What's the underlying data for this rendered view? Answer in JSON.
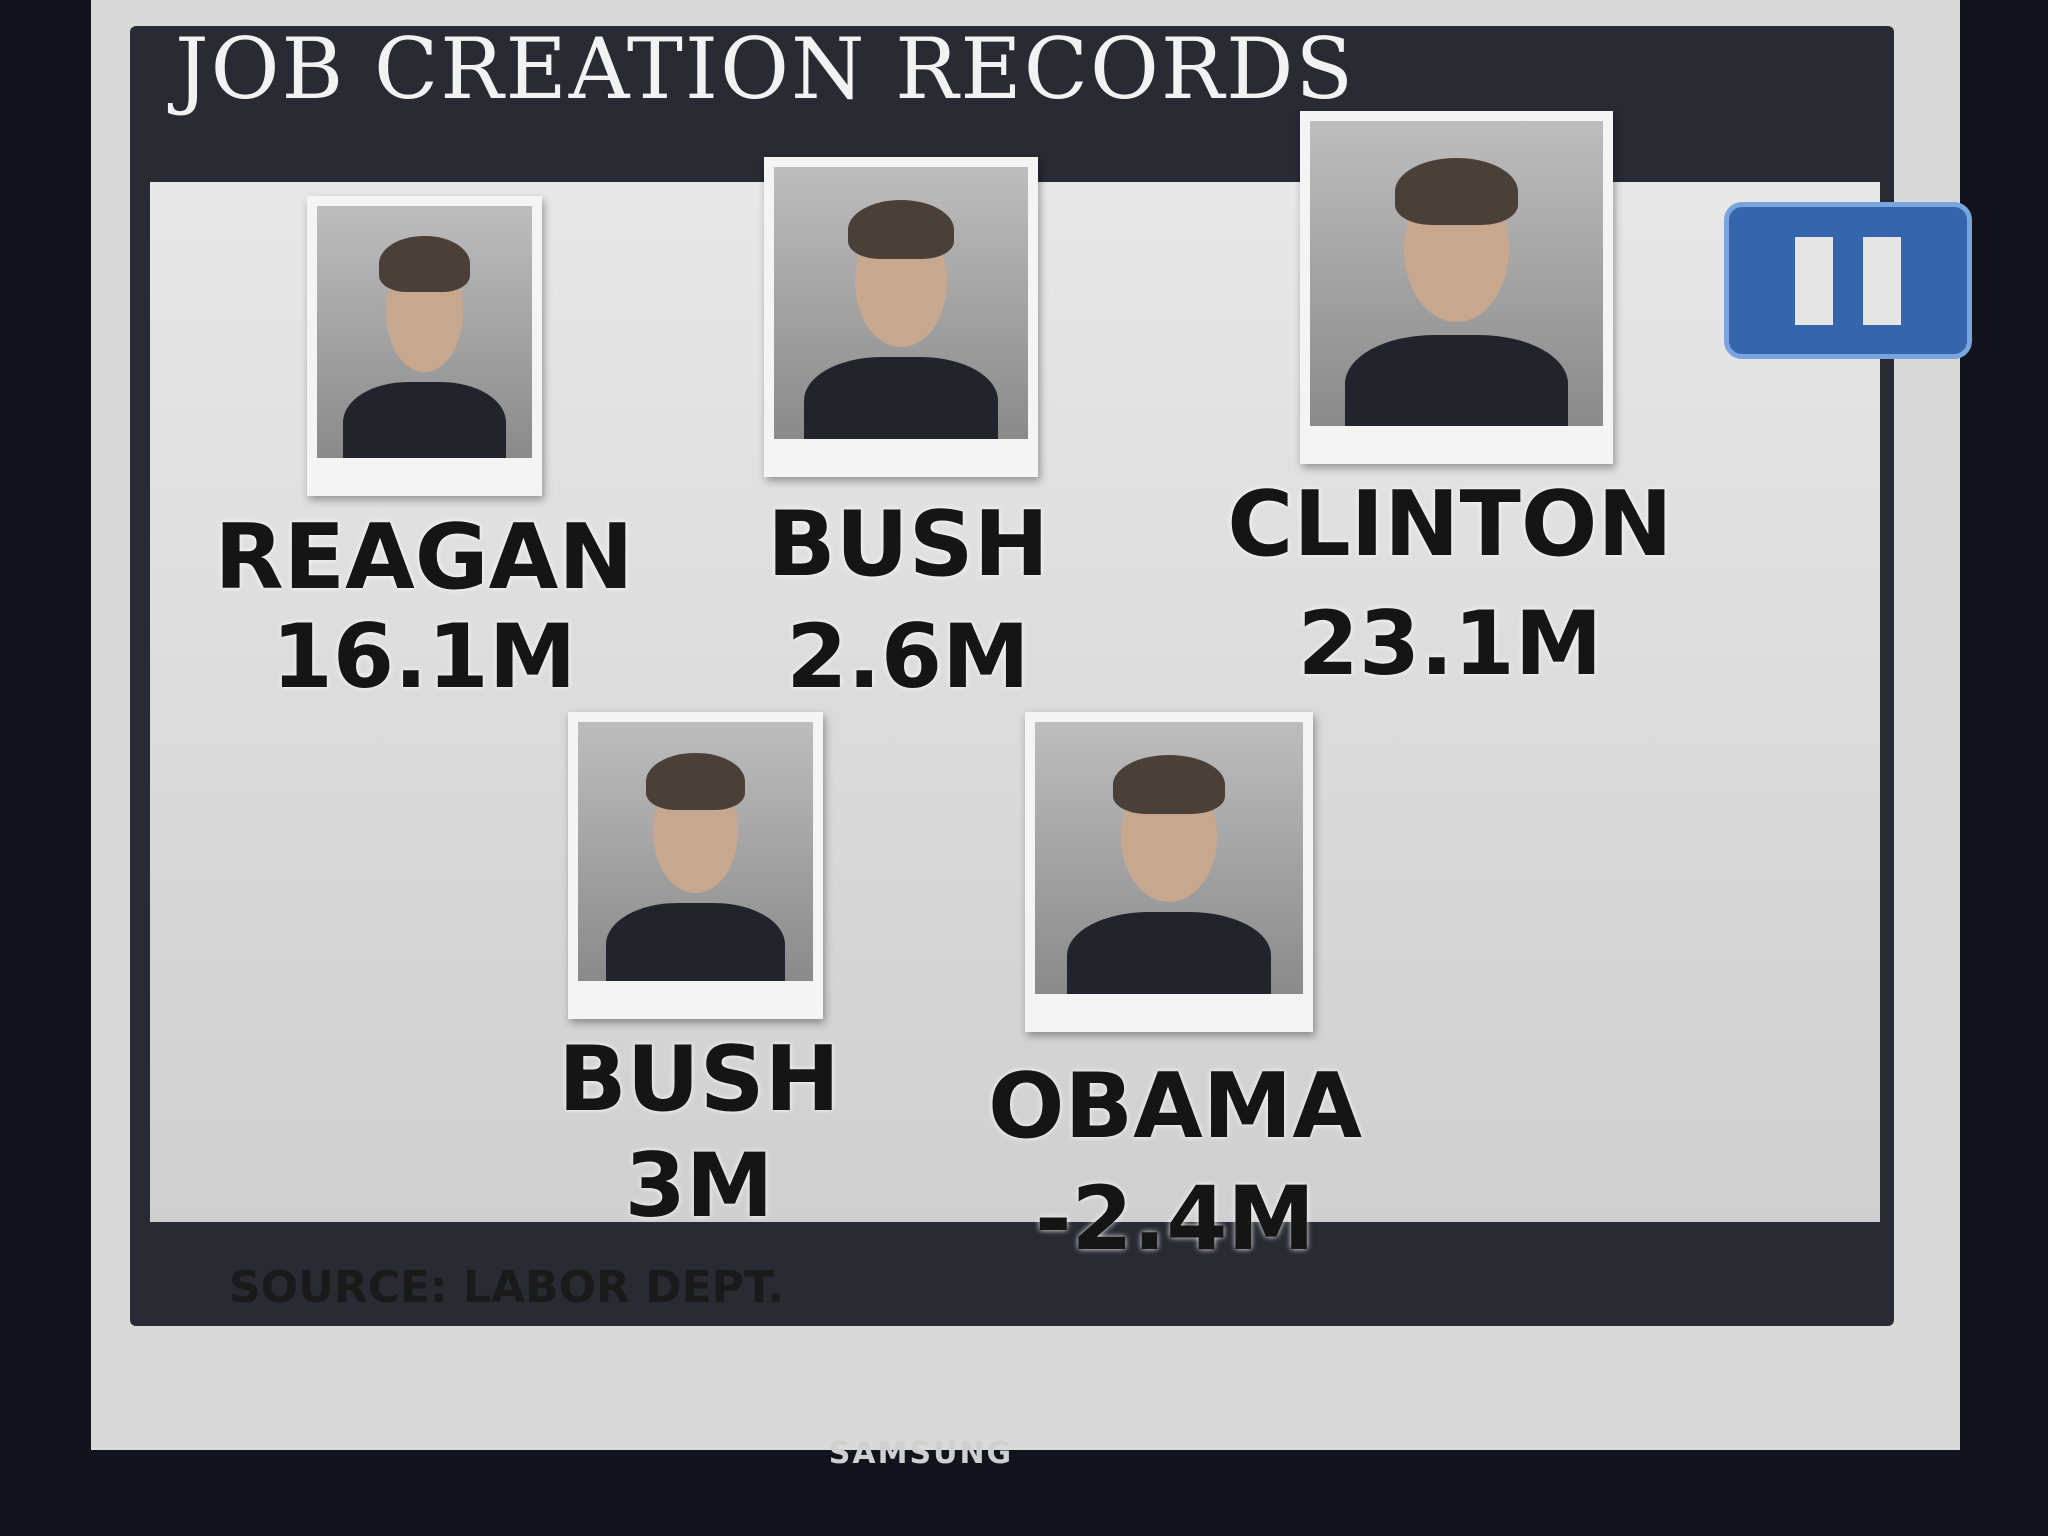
{
  "header": {
    "title": "JOB CREATION RECORDS"
  },
  "presidents": [
    {
      "name": "REAGAN",
      "jobs": "16.1M"
    },
    {
      "name": "BUSH",
      "jobs": "2.6M"
    },
    {
      "name": "CLINTON",
      "jobs": "23.1M"
    },
    {
      "name": "BUSH",
      "jobs": "3M"
    },
    {
      "name": "OBAMA",
      "jobs": "-2.4M"
    }
  ],
  "footer": {
    "source": "SOURCE: LABOR DEPT."
  },
  "tv": {
    "brand": "SAMSUNG"
  }
}
